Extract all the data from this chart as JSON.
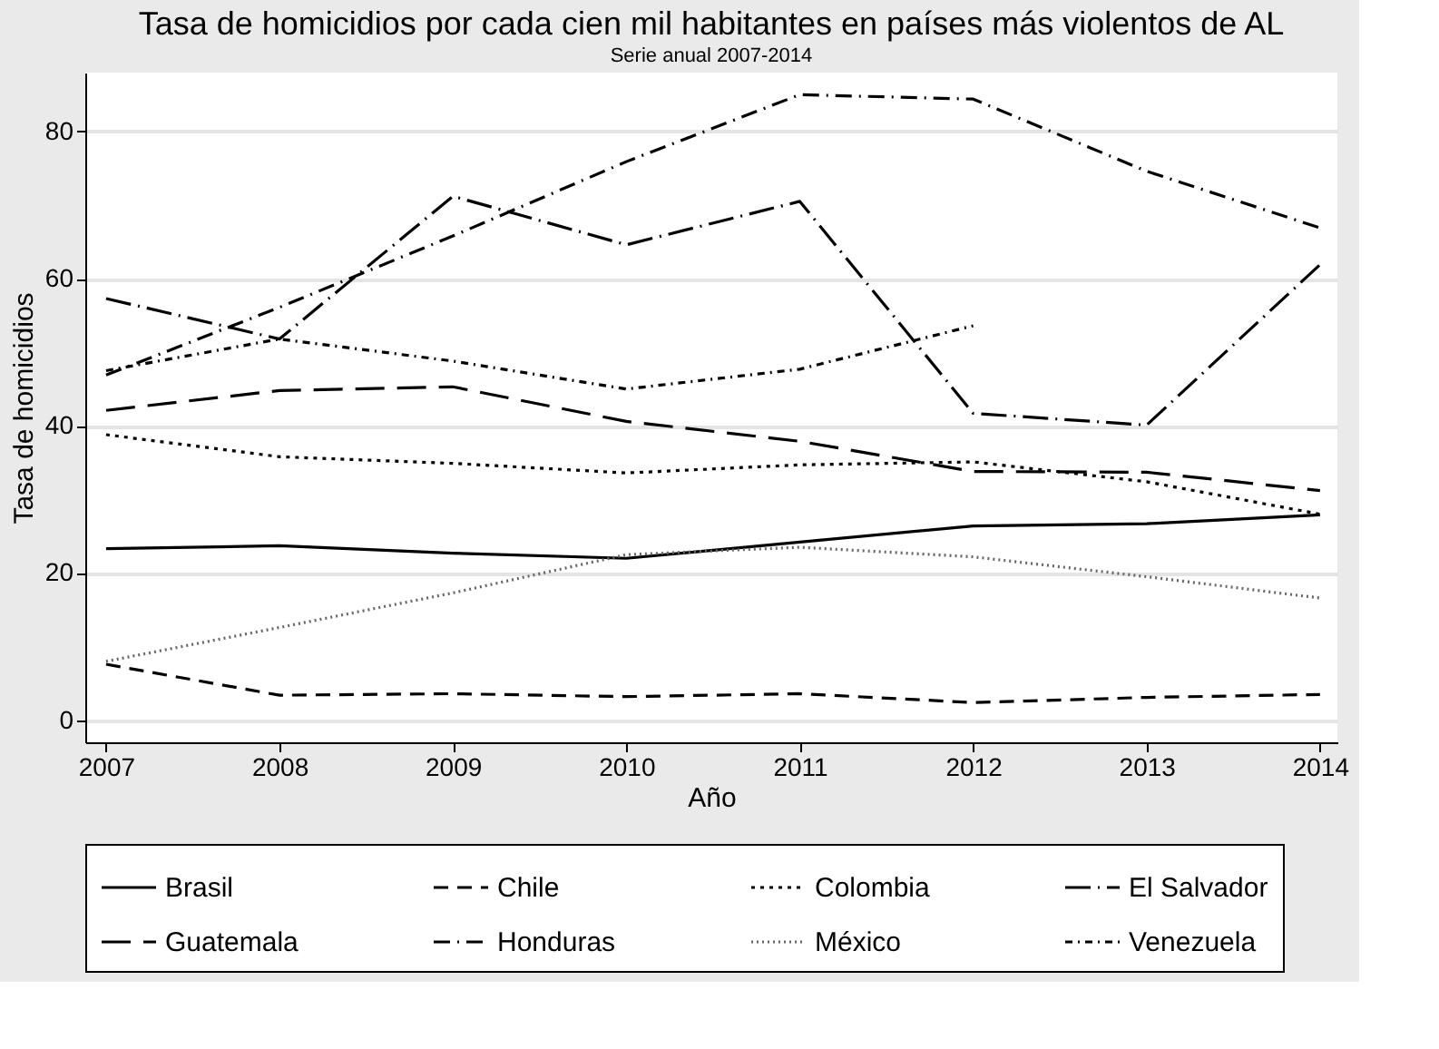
{
  "chart_data": {
    "type": "line",
    "title": "Tasa de homicidios por cada cien mil habitantes en países más violentos de AL",
    "subtitle": "Serie anual 2007-2014",
    "xlabel": "Año",
    "ylabel": "Tasa de homicidios",
    "x": [
      2007,
      2008,
      2009,
      2010,
      2011,
      2012,
      2013,
      2014
    ],
    "xlim": [
      2006.88,
      2014.1
    ],
    "xticks": [
      2007,
      2008,
      2009,
      2010,
      2011,
      2012,
      2013,
      2014
    ],
    "ylim": [
      -3,
      88
    ],
    "yticks": [
      0,
      20,
      40,
      60,
      80
    ],
    "grid": "y",
    "legend": "bottom",
    "marker": "none",
    "series": [
      {
        "name": "Brasil",
        "color": "#000000",
        "line_style": "solid",
        "values": [
          23.3,
          23.7,
          22.7,
          22.0,
          24.2,
          26.4,
          26.7,
          27.9
        ]
      },
      {
        "name": "Chile",
        "color": "#000000",
        "line_style": "dashed",
        "values": [
          7.6,
          3.4,
          3.6,
          3.2,
          3.6,
          2.4,
          3.1,
          3.5
        ]
      },
      {
        "name": "Colombia",
        "color": "#000000",
        "line_style": "dotted",
        "values": [
          38.8,
          35.8,
          34.9,
          33.6,
          34.7,
          35.1,
          32.4,
          28.0
        ]
      },
      {
        "name": "El Salvador",
        "color": "#000000",
        "line_style": "longdash_dot",
        "values": [
          57.3,
          51.8,
          71.2,
          64.6,
          70.5,
          41.7,
          40.1,
          61.9
        ]
      },
      {
        "name": "Guatemala",
        "color": "#000000",
        "line_style": "longdash",
        "values": [
          42.1,
          44.8,
          45.3,
          40.6,
          37.9,
          33.8,
          33.7,
          31.2
        ]
      },
      {
        "name": "Honduras",
        "color": "#000000",
        "line_style": "dashdot",
        "values": [
          46.9,
          56.1,
          65.8,
          75.9,
          85.0,
          84.4,
          74.6,
          66.9
        ]
      },
      {
        "name": "México",
        "color": "#666666",
        "line_style": "finedot",
        "values": [
          8.0,
          12.6,
          17.3,
          22.5,
          23.5,
          22.2,
          19.5,
          16.6
        ]
      },
      {
        "name": "Venezuela",
        "color": "#000000",
        "line_style": "shortdash_dot",
        "values": [
          47.5,
          51.8,
          48.8,
          45.0,
          47.7,
          53.6,
          null,
          null
        ]
      }
    ]
  }
}
